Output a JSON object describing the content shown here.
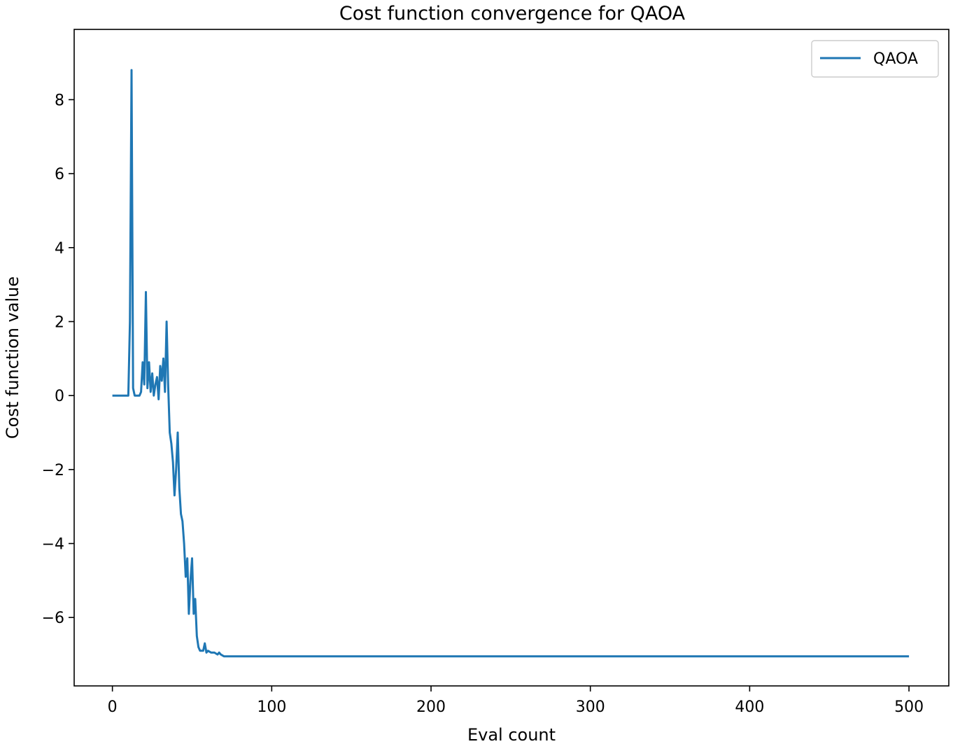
{
  "chart_data": {
    "type": "line",
    "title": "Cost function convergence for QAOA",
    "xlabel": "Eval count",
    "ylabel": "Cost function value",
    "xlim": [
      -24,
      525
    ],
    "ylim": [
      -7.85,
      9.9
    ],
    "xticks": [
      0,
      100,
      200,
      300,
      400,
      500
    ],
    "yticks": [
      -6,
      -4,
      -2,
      0,
      2,
      4,
      6,
      8
    ],
    "grid": false,
    "legend_position": "top-right",
    "series": [
      {
        "name": "QAOA",
        "color": "#1f77b4",
        "x": [
          0,
          10,
          11,
          12,
          13,
          14,
          15,
          17,
          18,
          19,
          20,
          21,
          22,
          23,
          24,
          25,
          26,
          27,
          28,
          29,
          30,
          31,
          32,
          33,
          34,
          35,
          36,
          37,
          38,
          39,
          40,
          41,
          42,
          43,
          44,
          45,
          46,
          47,
          48,
          49,
          50,
          51,
          52,
          53,
          54,
          55,
          56,
          57,
          58,
          59,
          60,
          62,
          64,
          66,
          67,
          68,
          70,
          72,
          75,
          80,
          90,
          100,
          120,
          150,
          200,
          300,
          400,
          500
        ],
        "y": [
          0,
          0,
          2.0,
          8.8,
          0.2,
          0,
          0,
          0,
          0.1,
          0.9,
          0.3,
          2.8,
          0.2,
          0.9,
          0.1,
          0.6,
          0.0,
          0.3,
          0.5,
          -0.1,
          0.8,
          0.4,
          1.0,
          0.1,
          2.0,
          0.3,
          -1.0,
          -1.3,
          -1.8,
          -2.7,
          -2.0,
          -1.0,
          -2.5,
          -3.2,
          -3.4,
          -4.0,
          -4.9,
          -4.4,
          -5.9,
          -5.0,
          -4.4,
          -5.9,
          -5.5,
          -6.5,
          -6.8,
          -6.9,
          -6.9,
          -6.9,
          -6.7,
          -6.95,
          -6.9,
          -6.95,
          -6.95,
          -7.0,
          -6.95,
          -7.0,
          -7.05,
          -7.05,
          -7.05,
          -7.05,
          -7.05,
          -7.05,
          -7.05,
          -7.05,
          -7.05,
          -7.05,
          -7.05,
          -7.05
        ]
      }
    ]
  }
}
